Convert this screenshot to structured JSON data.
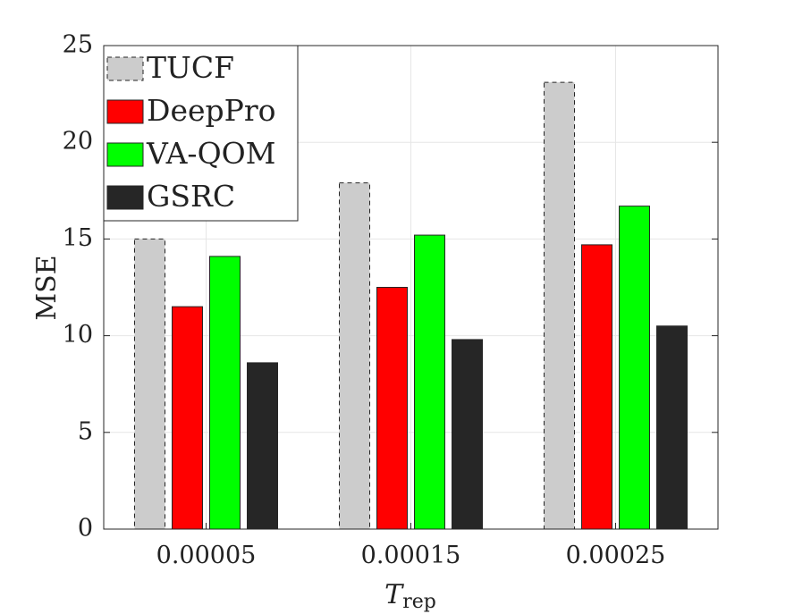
{
  "chart_data": {
    "type": "bar",
    "categories": [
      "0.00005",
      "0.00015",
      "0.00025"
    ],
    "series": [
      {
        "name": "TUCF",
        "values": [
          15.0,
          17.9,
          23.1
        ],
        "color": "#cccccc",
        "dashed_edge": true
      },
      {
        "name": "DeepPro",
        "values": [
          11.5,
          12.5,
          14.7
        ],
        "color": "#ff0000",
        "dashed_edge": false
      },
      {
        "name": "VA-QOM",
        "values": [
          14.1,
          15.2,
          16.7
        ],
        "color": "#00ff00",
        "dashed_edge": false
      },
      {
        "name": "GSRC",
        "values": [
          8.6,
          9.8,
          10.5
        ],
        "color": "#262626",
        "dashed_edge": false
      }
    ],
    "ylabel": "MSE",
    "xlabel": {
      "main": "T",
      "subscript": "rep"
    },
    "ylim": [
      0,
      25
    ],
    "yticks": [
      "0",
      "5",
      "10",
      "15",
      "20",
      "25"
    ],
    "grid": true,
    "legend_position": "top-left"
  }
}
